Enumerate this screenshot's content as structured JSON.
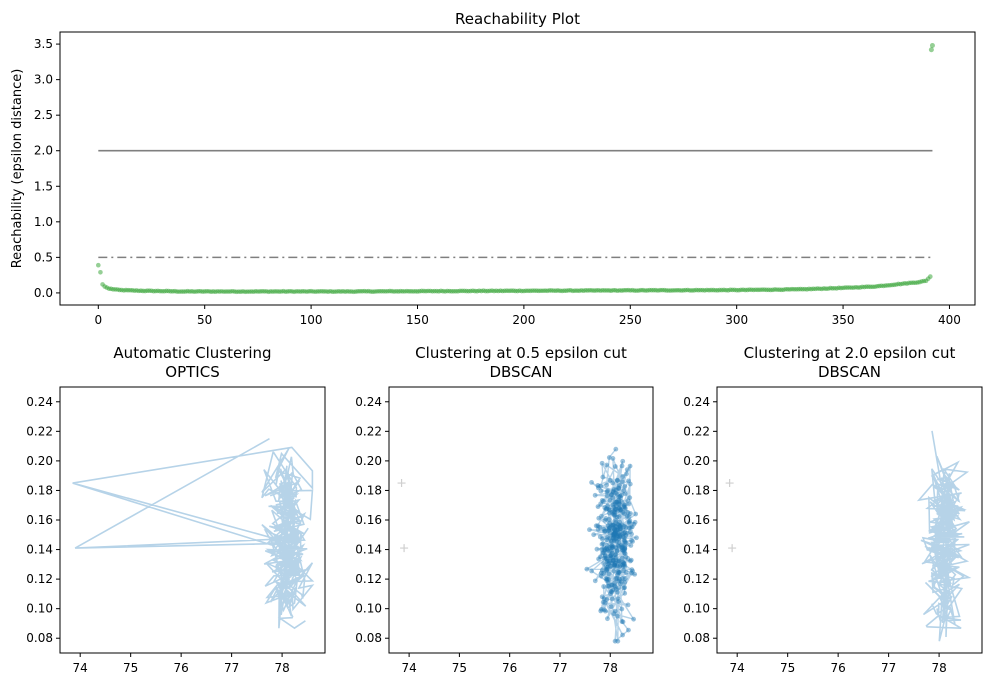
{
  "chart_data": [
    {
      "type": "scatter",
      "title": "Reachability Plot",
      "xlabel": "",
      "ylabel": "Reachability (epsilon distance)",
      "xlim": [
        -18,
        412
      ],
      "ylim": [
        -0.17,
        3.67
      ],
      "xticks": [
        0,
        50,
        100,
        150,
        200,
        250,
        300,
        350,
        400
      ],
      "yticks": [
        0.0,
        0.5,
        1.0,
        1.5,
        2.0,
        2.5,
        3.0,
        3.5
      ],
      "ytick_labels": [
        "0.0",
        "0.5",
        "1.0",
        "1.5",
        "2.0",
        "2.5",
        "3.0",
        "3.5"
      ],
      "grid": false,
      "series": [
        {
          "color": "#2ca02c",
          "marker": "o",
          "alpha": 0.5,
          "points": [
            [
              0,
              0.39
            ],
            [
              1,
              0.29
            ],
            [
              2,
              0.12
            ],
            [
              3,
              0.09
            ],
            [
              5,
              0.06
            ],
            [
              10,
              0.04
            ],
            [
              20,
              0.03
            ],
            [
              40,
              0.02
            ],
            [
              80,
              0.02
            ],
            [
              120,
              0.02
            ],
            [
              160,
              0.025
            ],
            [
              200,
              0.03
            ],
            [
              250,
              0.035
            ],
            [
              300,
              0.04
            ],
            [
              330,
              0.05
            ],
            [
              350,
              0.07
            ],
            [
              365,
              0.09
            ],
            [
              375,
              0.12
            ],
            [
              385,
              0.15
            ],
            [
              389,
              0.17
            ],
            [
              390,
              0.2
            ],
            [
              391,
              0.23
            ],
            [
              391.5,
              3.42
            ],
            [
              392,
              3.48
            ]
          ]
        }
      ],
      "reference_lines": [
        {
          "y": 2.0,
          "x_range": [
            0,
            392
          ],
          "style": "solid",
          "color": "#000000",
          "alpha": 0.5
        },
        {
          "y": 0.5,
          "x_range": [
            0,
            392
          ],
          "style": "dashdot",
          "color": "#000000",
          "alpha": 0.5
        }
      ]
    },
    {
      "type": "scatter",
      "title": "Automatic Clustering\nOPTICS",
      "xlim": [
        73.6,
        78.85
      ],
      "ylim": [
        0.07,
        0.25
      ],
      "xticks": [
        74,
        75,
        76,
        77,
        78
      ],
      "yticks": [
        0.08,
        0.1,
        0.12,
        0.14,
        0.16,
        0.18,
        0.2,
        0.22,
        0.24
      ],
      "ytick_labels": [
        "0.08",
        "0.10",
        "0.12",
        "0.14",
        "0.16",
        "0.18",
        "0.20",
        "0.22",
        "0.24"
      ],
      "cluster_center": [
        78.1,
        0.145
      ],
      "cluster_y_range": [
        0.078,
        0.241
      ],
      "cluster_x_range": [
        77.6,
        78.6
      ],
      "outliers": [
        [
          73.85,
          0.185
        ],
        [
          73.9,
          0.141
        ]
      ],
      "cluster_color": "#b6d3e8",
      "style": "line"
    },
    {
      "type": "scatter",
      "title": "Clustering at 0.5 epsilon cut\nDBSCAN",
      "xlim": [
        73.6,
        78.85
      ],
      "ylim": [
        0.07,
        0.25
      ],
      "xticks": [
        74,
        75,
        76,
        77,
        78
      ],
      "yticks": [
        0.08,
        0.1,
        0.12,
        0.14,
        0.16,
        0.18,
        0.2,
        0.22,
        0.24
      ],
      "ytick_labels": [
        "0.08",
        "0.10",
        "0.12",
        "0.14",
        "0.16",
        "0.18",
        "0.20",
        "0.22",
        "0.24"
      ],
      "cluster_center": [
        78.1,
        0.145
      ],
      "cluster_y_range": [
        0.078,
        0.241
      ],
      "cluster_x_range": [
        77.4,
        78.6
      ],
      "outliers": [
        [
          73.85,
          0.185
        ],
        [
          73.9,
          0.141
        ]
      ],
      "cluster_color": "#1f77b4",
      "style": "points"
    },
    {
      "type": "scatter",
      "title": "Clustering at 2.0 epsilon cut\nDBSCAN",
      "xlim": [
        73.6,
        78.85
      ],
      "ylim": [
        0.07,
        0.25
      ],
      "xticks": [
        74,
        75,
        76,
        77,
        78
      ],
      "yticks": [
        0.08,
        0.1,
        0.12,
        0.14,
        0.16,
        0.18,
        0.2,
        0.22,
        0.24
      ],
      "ytick_labels": [
        "0.08",
        "0.10",
        "0.12",
        "0.14",
        "0.16",
        "0.18",
        "0.20",
        "0.22",
        "0.24"
      ],
      "cluster_center": [
        78.1,
        0.145
      ],
      "cluster_y_range": [
        0.078,
        0.241
      ],
      "cluster_x_range": [
        77.6,
        78.6
      ],
      "outliers": [
        [
          73.85,
          0.185
        ],
        [
          73.9,
          0.141
        ]
      ],
      "cluster_color": "#b6d3e8",
      "style": "line"
    }
  ]
}
